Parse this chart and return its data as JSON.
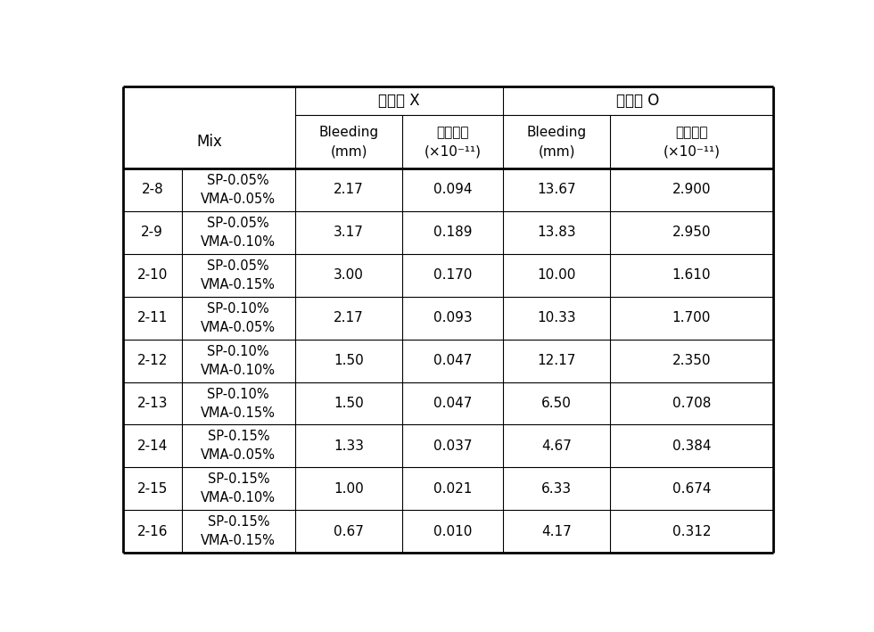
{
  "col_ids": [
    "2-8",
    "2-9",
    "2-10",
    "2-11",
    "2-12",
    "2-13",
    "2-14",
    "2-15",
    "2-16"
  ],
  "col_mix": [
    "SP-0.05%\nVMA-0.05%",
    "SP-0.05%\nVMA-0.10%",
    "SP-0.05%\nVMA-0.15%",
    "SP-0.10%\nVMA-0.05%",
    "SP-0.10%\nVMA-0.10%",
    "SP-0.10%\nVMA-0.15%",
    "SP-0.15%\nVMA-0.05%",
    "SP-0.15%\nVMA-0.10%",
    "SP-0.15%\nVMA-0.15%"
  ],
  "col_bleed_x": [
    "2.17",
    "3.17",
    "3.00",
    "2.17",
    "1.50",
    "1.50",
    "1.33",
    "1.00",
    "0.67"
  ],
  "col_perm_x": [
    "0.094",
    "0.189",
    "0.170",
    "0.093",
    "0.047",
    "0.047",
    "0.037",
    "0.021",
    "0.010"
  ],
  "col_bleed_o": [
    "13.67",
    "13.83",
    "10.00",
    "10.33",
    "12.17",
    "6.50",
    "4.67",
    "6.33",
    "4.17"
  ],
  "col_perm_o": [
    "2.900",
    "2.950",
    "1.610",
    "1.700",
    "2.350",
    "0.708",
    "0.384",
    "0.674",
    "0.312"
  ],
  "header1_x": "강연선 X",
  "header1_o": "강연선 O",
  "header_mix": "Mix",
  "header_bleeding": "Bleeding\n(mm)",
  "header_perm": "투수계수",
  "header_perm2": "(×10⁻¹¹)",
  "bg_color": "#ffffff",
  "lw_outer": 2.0,
  "lw_inner": 0.8,
  "lw_thick": 2.0
}
